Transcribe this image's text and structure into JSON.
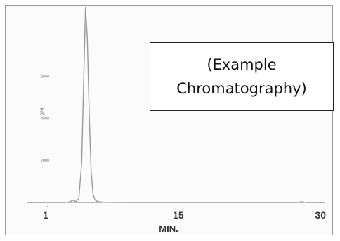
{
  "chart_data": {
    "type": "line",
    "title": "",
    "xlabel": "MIN.",
    "ylabel": "DPM",
    "x_ticks": [
      "1",
      "15",
      "30"
    ],
    "y_ticks": [
      "2000",
      "4000",
      "6000"
    ],
    "xlim": [
      -1,
      30.5
    ],
    "ylim": [
      0,
      9300
    ],
    "series": [
      {
        "x": [
          -1,
          0,
          1,
          2,
          3,
          3.5,
          3.9,
          4.2,
          4.5,
          4.8,
          5.0,
          5.2,
          5.4,
          5.6,
          5.8,
          6.0,
          6.2,
          6.5,
          7,
          8,
          10,
          15,
          20,
          25,
          27.5,
          28.0,
          28.5,
          29,
          30.5
        ],
        "y": [
          0,
          0,
          0,
          0,
          0,
          25,
          110,
          40,
          180,
          1900,
          5600,
          9300,
          7800,
          4200,
          1500,
          400,
          120,
          40,
          15,
          5,
          0,
          0,
          0,
          0,
          0,
          35,
          0,
          0,
          0
        ]
      }
    ],
    "annotation": [
      "(Example",
      "Chromatography)"
    ],
    "grid": false,
    "colors": {
      "line": "#9a9a9a",
      "axis": "#777777"
    }
  }
}
